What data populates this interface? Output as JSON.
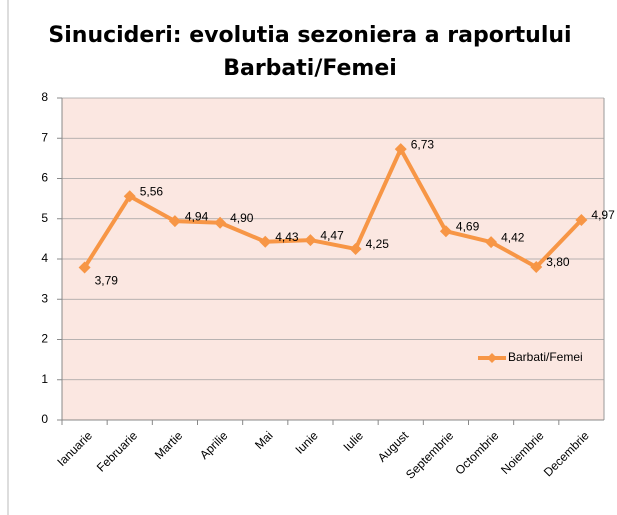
{
  "chart_data": {
    "type": "line",
    "title": [
      "Sinucideri: evolutia sezoniera a raportului",
      "Barbati/Femei"
    ],
    "categories": [
      "Ianuarie",
      "Februarie",
      "Martie",
      "Aprilie",
      "Mai",
      "Iunie",
      "Iulie",
      "August",
      "Septembrie",
      "Octombrie",
      "Noiembrie",
      "Decembrie"
    ],
    "series": [
      {
        "name": "Barbati/Femei",
        "color": "#f79646",
        "values": [
          3.79,
          5.56,
          4.94,
          4.9,
          4.43,
          4.47,
          4.25,
          6.73,
          4.69,
          4.42,
          3.8,
          4.97
        ],
        "value_labels": [
          "3,79",
          "5,56",
          "4,94",
          "4,90",
          "4,43",
          "4,47",
          "4,25",
          "6,73",
          "4,69",
          "4,42",
          "3,80",
          "4,97"
        ]
      }
    ],
    "ylim": [
      0,
      8
    ],
    "yticks": [
      0,
      1,
      2,
      3,
      4,
      5,
      6,
      7,
      8
    ],
    "grid": true,
    "legend": "right"
  }
}
